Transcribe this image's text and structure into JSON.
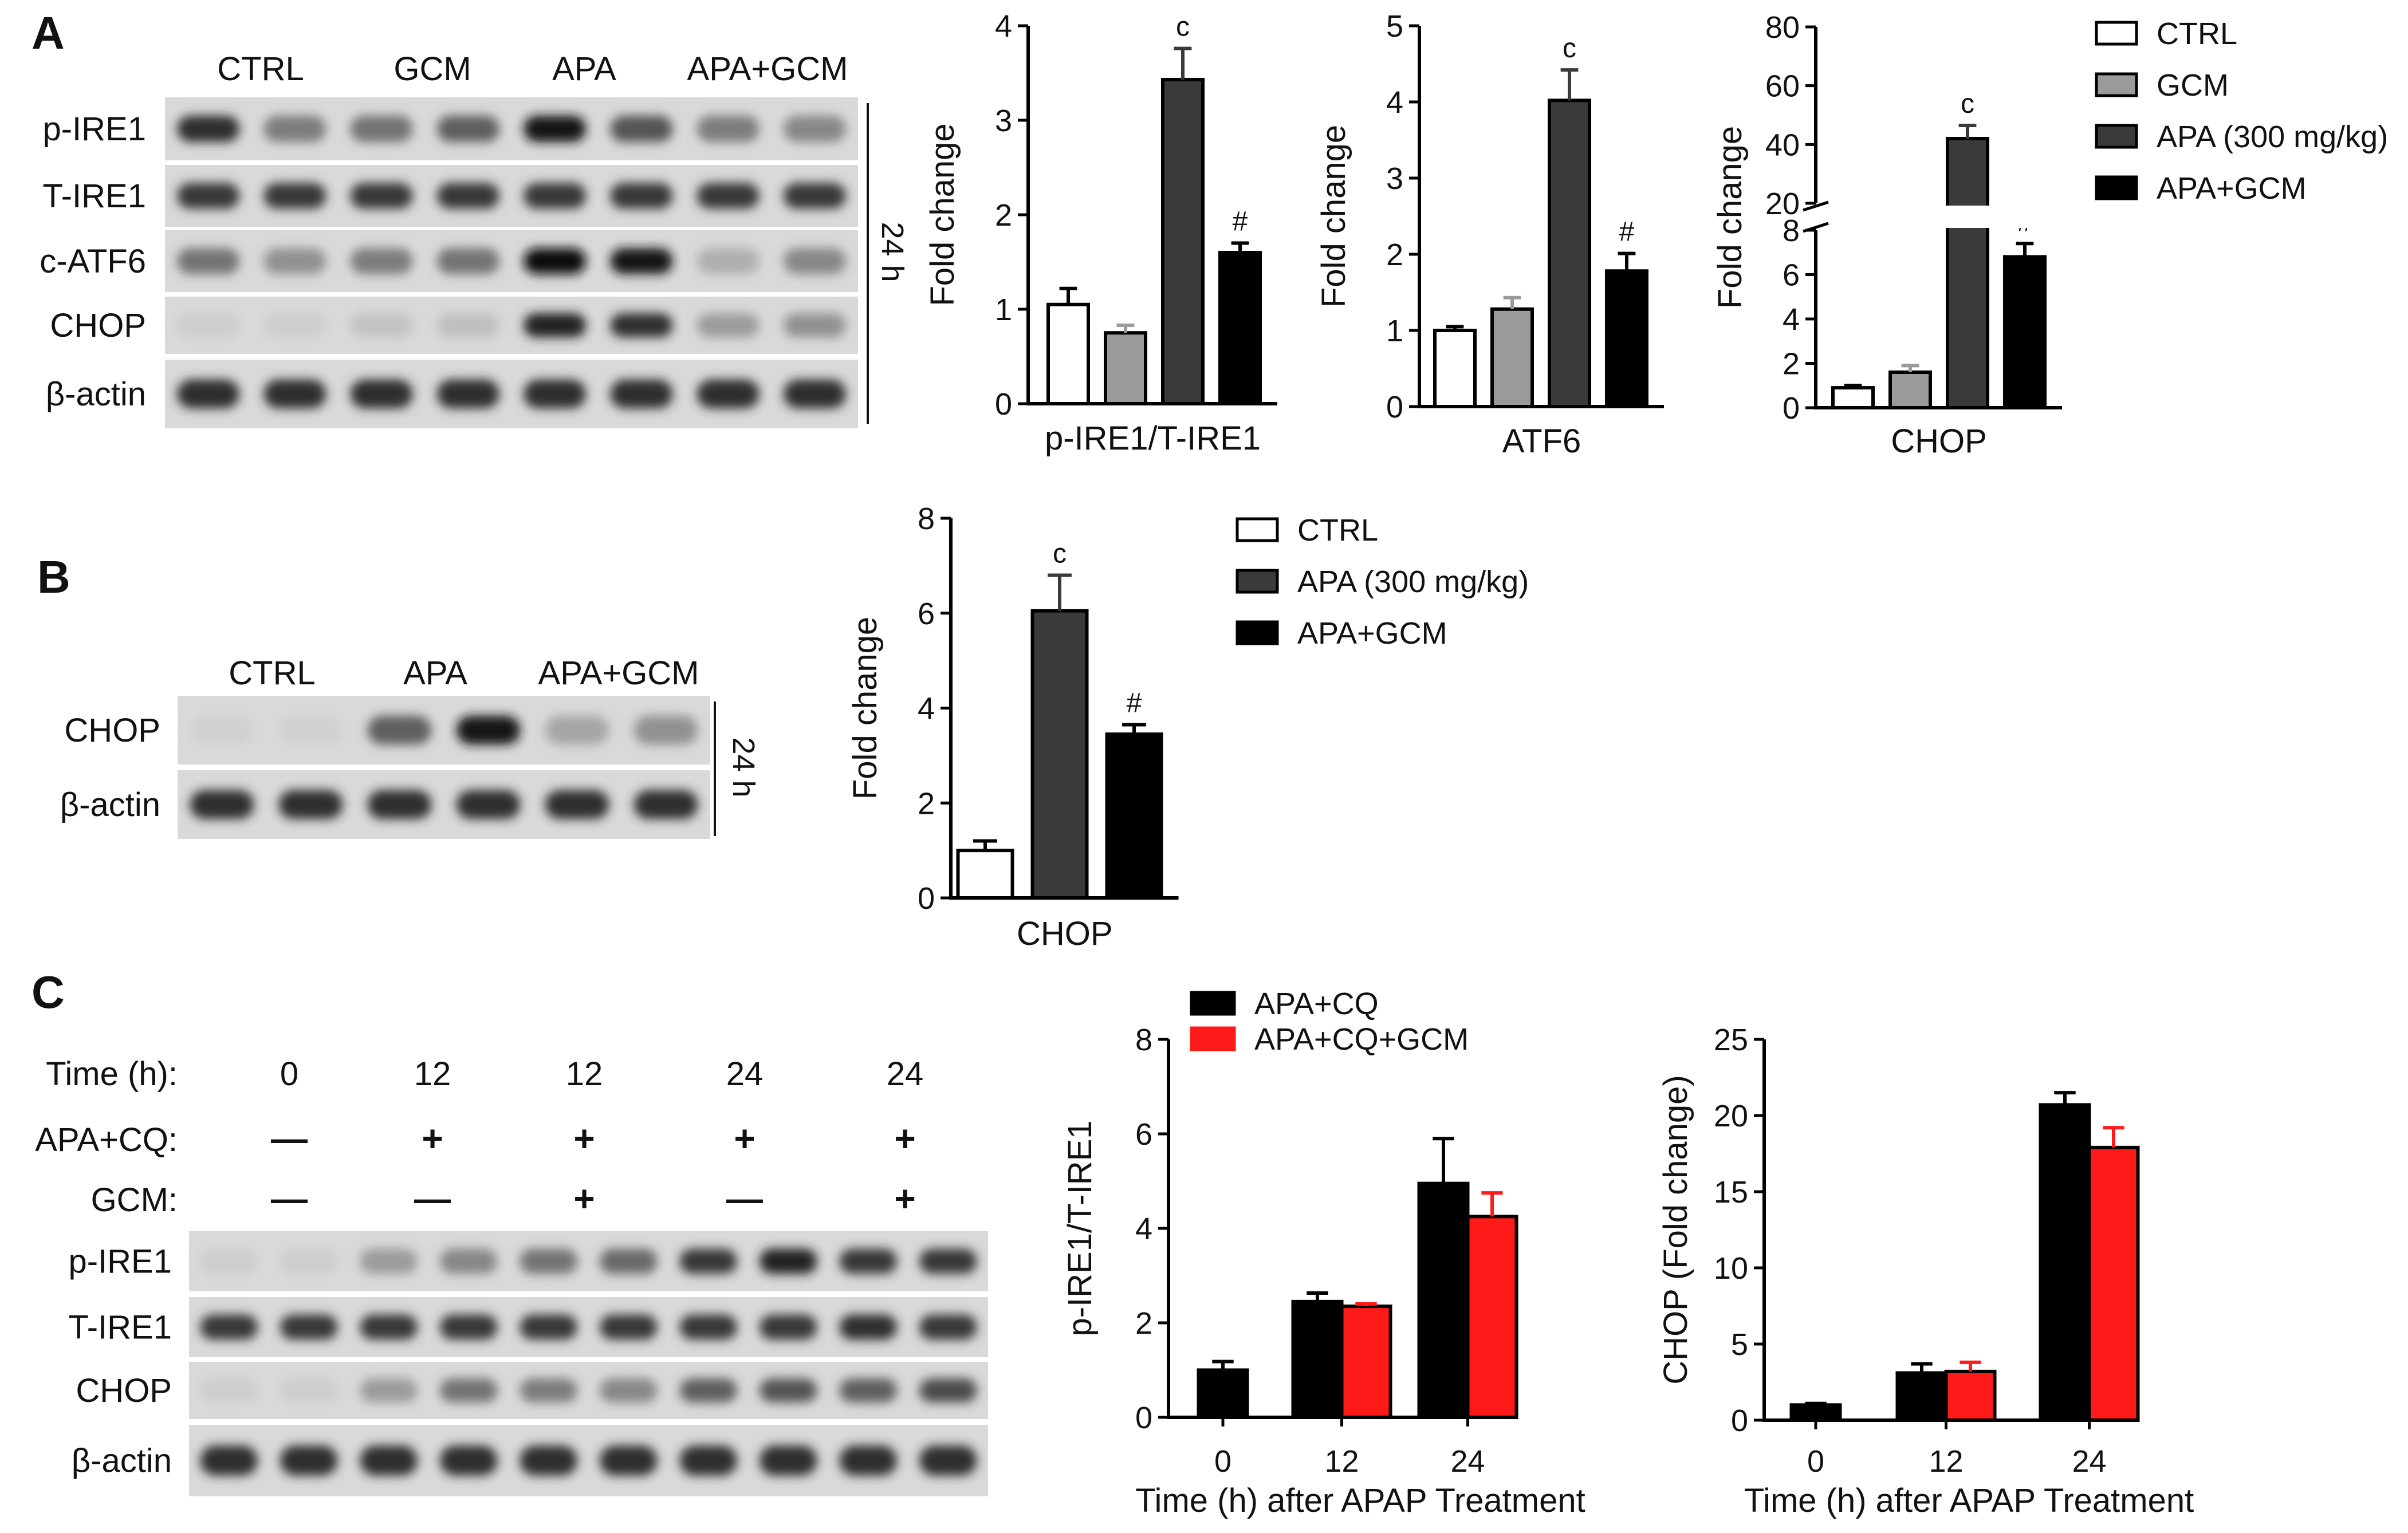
{
  "panels": [
    {
      "letter": "A",
      "blot": {
        "lanes": [
          "CTRL",
          "GCM",
          "APA",
          "APA+GCM"
        ],
        "rows": [
          "p-IRE1",
          "T-IRE1",
          "c-ATF6",
          "CHOP",
          "β-actin"
        ],
        "time": "24 h"
      }
    },
    {
      "letter": "B",
      "blot": {
        "lanes": [
          "CTRL",
          "APA",
          "APA+GCM"
        ],
        "rows": [
          "CHOP",
          "β-actin"
        ],
        "time": "24 h"
      }
    },
    {
      "letter": "C",
      "blot": {
        "time_label": "Time (h):",
        "time_values": [
          "0",
          "12",
          "12",
          "24",
          "24"
        ],
        "treat_label": "APA+CQ:",
        "treat_values": [
          "—",
          "+",
          "+",
          "+",
          "+"
        ],
        "gcm_label": "GCM:",
        "gcm_values": [
          "—",
          "—",
          "+",
          "—",
          "+"
        ],
        "rows": [
          "p-IRE1",
          "T-IRE1",
          "CHOP",
          "β-actin"
        ]
      }
    }
  ],
  "legends": [
    {
      "entries": [
        {
          "label": "CTRL",
          "color": "#ffffff"
        },
        {
          "label": "GCM",
          "color": "#9a9a9a"
        },
        {
          "label": "APA (300 mg/kg)",
          "color": "#3a3a3a"
        },
        {
          "label": "APA+GCM",
          "color": "#000000"
        }
      ]
    },
    {
      "entries": [
        {
          "label": "CTRL",
          "color": "#ffffff"
        },
        {
          "label": "APA (300 mg/kg)",
          "color": "#3a3a3a"
        },
        {
          "label": "APA+GCM",
          "color": "#000000"
        }
      ]
    },
    {
      "entries": [
        {
          "label": "APA+CQ",
          "color": "#000000"
        },
        {
          "label": "APA+CQ+GCM",
          "color": "#ff1a1a"
        }
      ]
    }
  ],
  "chart_data": [
    {
      "type": "bar",
      "panel": "A",
      "ylabel": "Fold change",
      "xlabel": "p-IRE1/T-IRE1",
      "ylim": [
        0,
        4
      ],
      "yticks": [
        0,
        1,
        2,
        3,
        4
      ],
      "categories": [
        "CTRL",
        "GCM",
        "APA (300 mg/kg)",
        "APA+GCM"
      ],
      "values": [
        1.05,
        0.75,
        3.43,
        1.6
      ],
      "errors": [
        0.17,
        0.08,
        0.33,
        0.1
      ],
      "annotations": [
        "",
        "",
        "c",
        "#"
      ],
      "colors": [
        "#ffffff",
        "#9a9a9a",
        "#3a3a3a",
        "#000000"
      ]
    },
    {
      "type": "bar",
      "panel": "A",
      "ylabel": "Fold change",
      "xlabel": "ATF6",
      "ylim": [
        0,
        5
      ],
      "yticks": [
        0,
        1,
        2,
        3,
        4,
        5
      ],
      "categories": [
        "CTRL",
        "GCM",
        "APA (300 mg/kg)",
        "APA+GCM"
      ],
      "values": [
        1.0,
        1.28,
        4.02,
        1.78
      ],
      "errors": [
        0.05,
        0.15,
        0.4,
        0.23
      ],
      "annotations": [
        "",
        "",
        "c",
        "#"
      ],
      "colors": [
        "#ffffff",
        "#9a9a9a",
        "#3a3a3a",
        "#000000"
      ]
    },
    {
      "type": "bar",
      "panel": "A",
      "ylabel": "Fold change",
      "xlabel": "CHOP",
      "ylim": [
        0,
        80
      ],
      "axis_break": {
        "lower": [
          0,
          8
        ],
        "upper": [
          20,
          80
        ]
      },
      "yticks_lower": [
        0,
        2,
        4,
        6,
        8
      ],
      "yticks_upper": [
        20,
        40,
        60,
        80
      ],
      "categories": [
        "CTRL",
        "GCM",
        "APA (300 mg/kg)",
        "APA+GCM"
      ],
      "values": [
        0.9,
        1.6,
        42,
        6.8
      ],
      "errors": [
        0.1,
        0.3,
        4.5,
        0.6
      ],
      "annotations": [
        "",
        "",
        "c",
        "#"
      ],
      "colors": [
        "#ffffff",
        "#9a9a9a",
        "#3a3a3a",
        "#000000"
      ]
    },
    {
      "type": "bar",
      "panel": "B",
      "ylabel": "Fold change",
      "xlabel": "CHOP",
      "ylim": [
        0,
        8
      ],
      "yticks": [
        0,
        2,
        4,
        6,
        8
      ],
      "categories": [
        "CTRL",
        "APA (300 mg/kg)",
        "APA+GCM"
      ],
      "values": [
        1.0,
        6.05,
        3.45
      ],
      "errors": [
        0.2,
        0.75,
        0.2
      ],
      "annotations": [
        "",
        "c",
        "#"
      ],
      "colors": [
        "#ffffff",
        "#3a3a3a",
        "#000000"
      ]
    },
    {
      "type": "bar",
      "panel": "C",
      "ylabel": "p-IRE1/T-IRE1",
      "xlabel": "Time (h) after APAP Treatment",
      "ylim": [
        0,
        8
      ],
      "yticks": [
        0,
        2,
        4,
        6,
        8
      ],
      "categories": [
        "0",
        "12",
        "24"
      ],
      "series": [
        {
          "name": "APA+CQ",
          "color": "#000000",
          "values": [
            1.0,
            2.45,
            4.95
          ],
          "errors": [
            0.18,
            0.18,
            0.95
          ]
        },
        {
          "name": "APA+CQ+GCM",
          "color": "#ff1a1a",
          "values": [
            null,
            2.35,
            4.25
          ],
          "errors": [
            null,
            0.05,
            0.5
          ]
        }
      ]
    },
    {
      "type": "bar",
      "panel": "C",
      "ylabel": "CHOP (Fold change)",
      "xlabel": "Time (h) after APAP Treatment",
      "ylim": [
        0,
        25
      ],
      "yticks": [
        0,
        5,
        10,
        15,
        20,
        25
      ],
      "categories": [
        "0",
        "12",
        "24"
      ],
      "series": [
        {
          "name": "APA+CQ",
          "color": "#000000",
          "values": [
            1.0,
            3.1,
            20.7
          ],
          "errors": [
            0.1,
            0.6,
            0.8
          ]
        },
        {
          "name": "APA+CQ+GCM",
          "color": "#ff1a1a",
          "values": [
            null,
            3.2,
            17.9
          ],
          "errors": [
            null,
            0.6,
            1.3
          ]
        }
      ]
    }
  ]
}
